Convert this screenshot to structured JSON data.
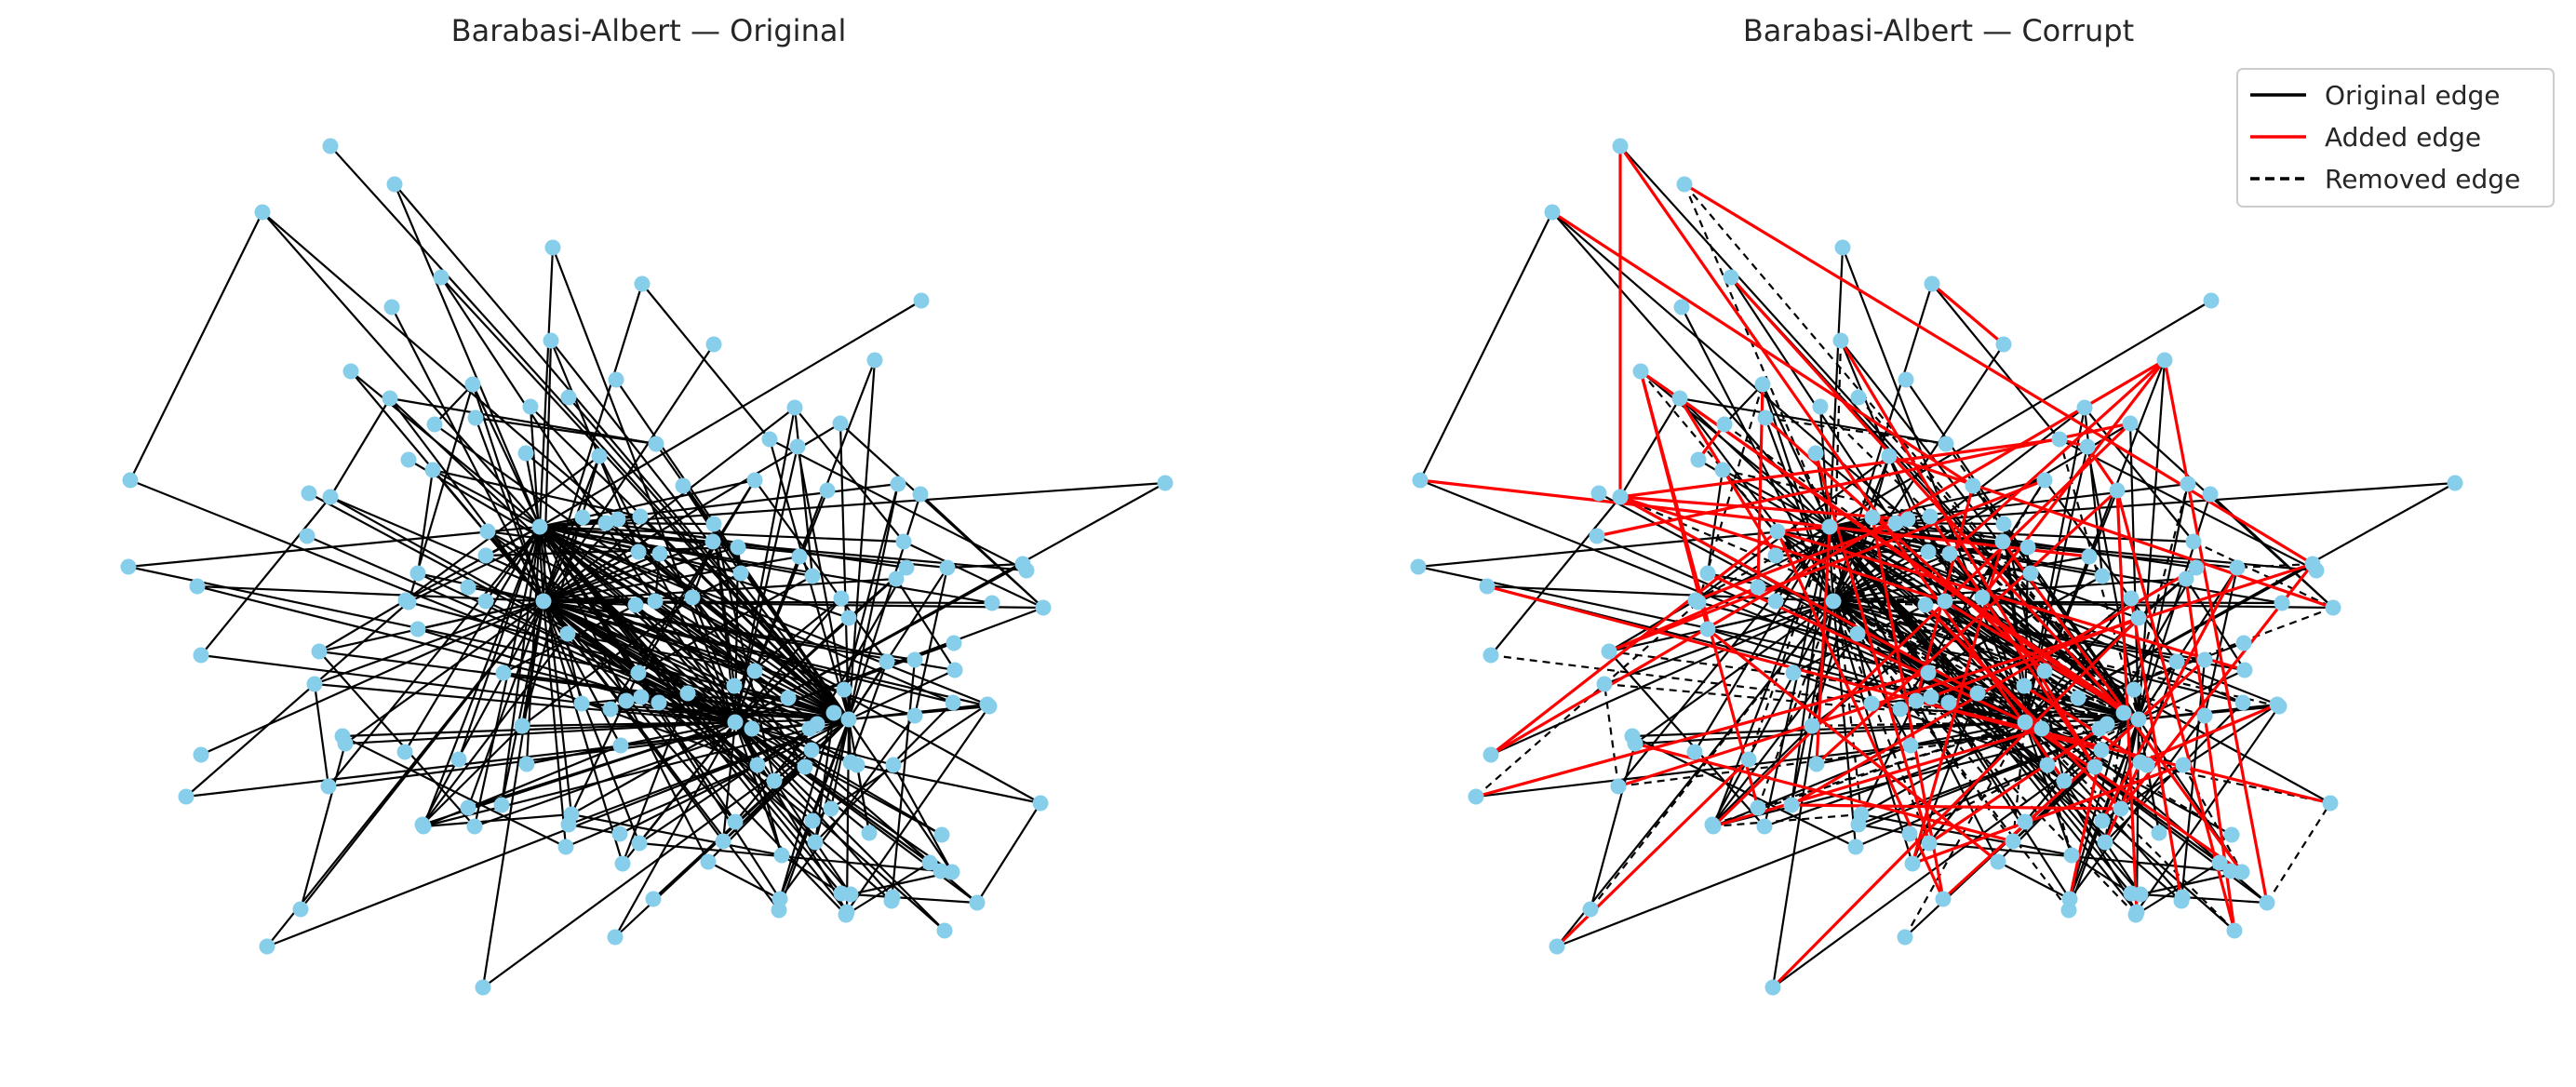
{
  "panels": [
    {
      "title": "Barabasi-Albert — Original",
      "kind": "original"
    },
    {
      "title": "Barabasi-Albert — Corrupt",
      "kind": "corrupt"
    }
  ],
  "legend": {
    "items": [
      {
        "label": "Original edge",
        "color": "#000000",
        "style": "solid"
      },
      {
        "label": "Added edge",
        "color": "#ff0000",
        "style": "solid"
      },
      {
        "label": "Removed edge",
        "color": "#000000",
        "style": "dashed"
      }
    ]
  },
  "colors": {
    "node": "#87ceeb",
    "edge": "#000000",
    "added_edge": "#ff0000",
    "removed_edge": "#000000",
    "background": "#ffffff"
  }
}
